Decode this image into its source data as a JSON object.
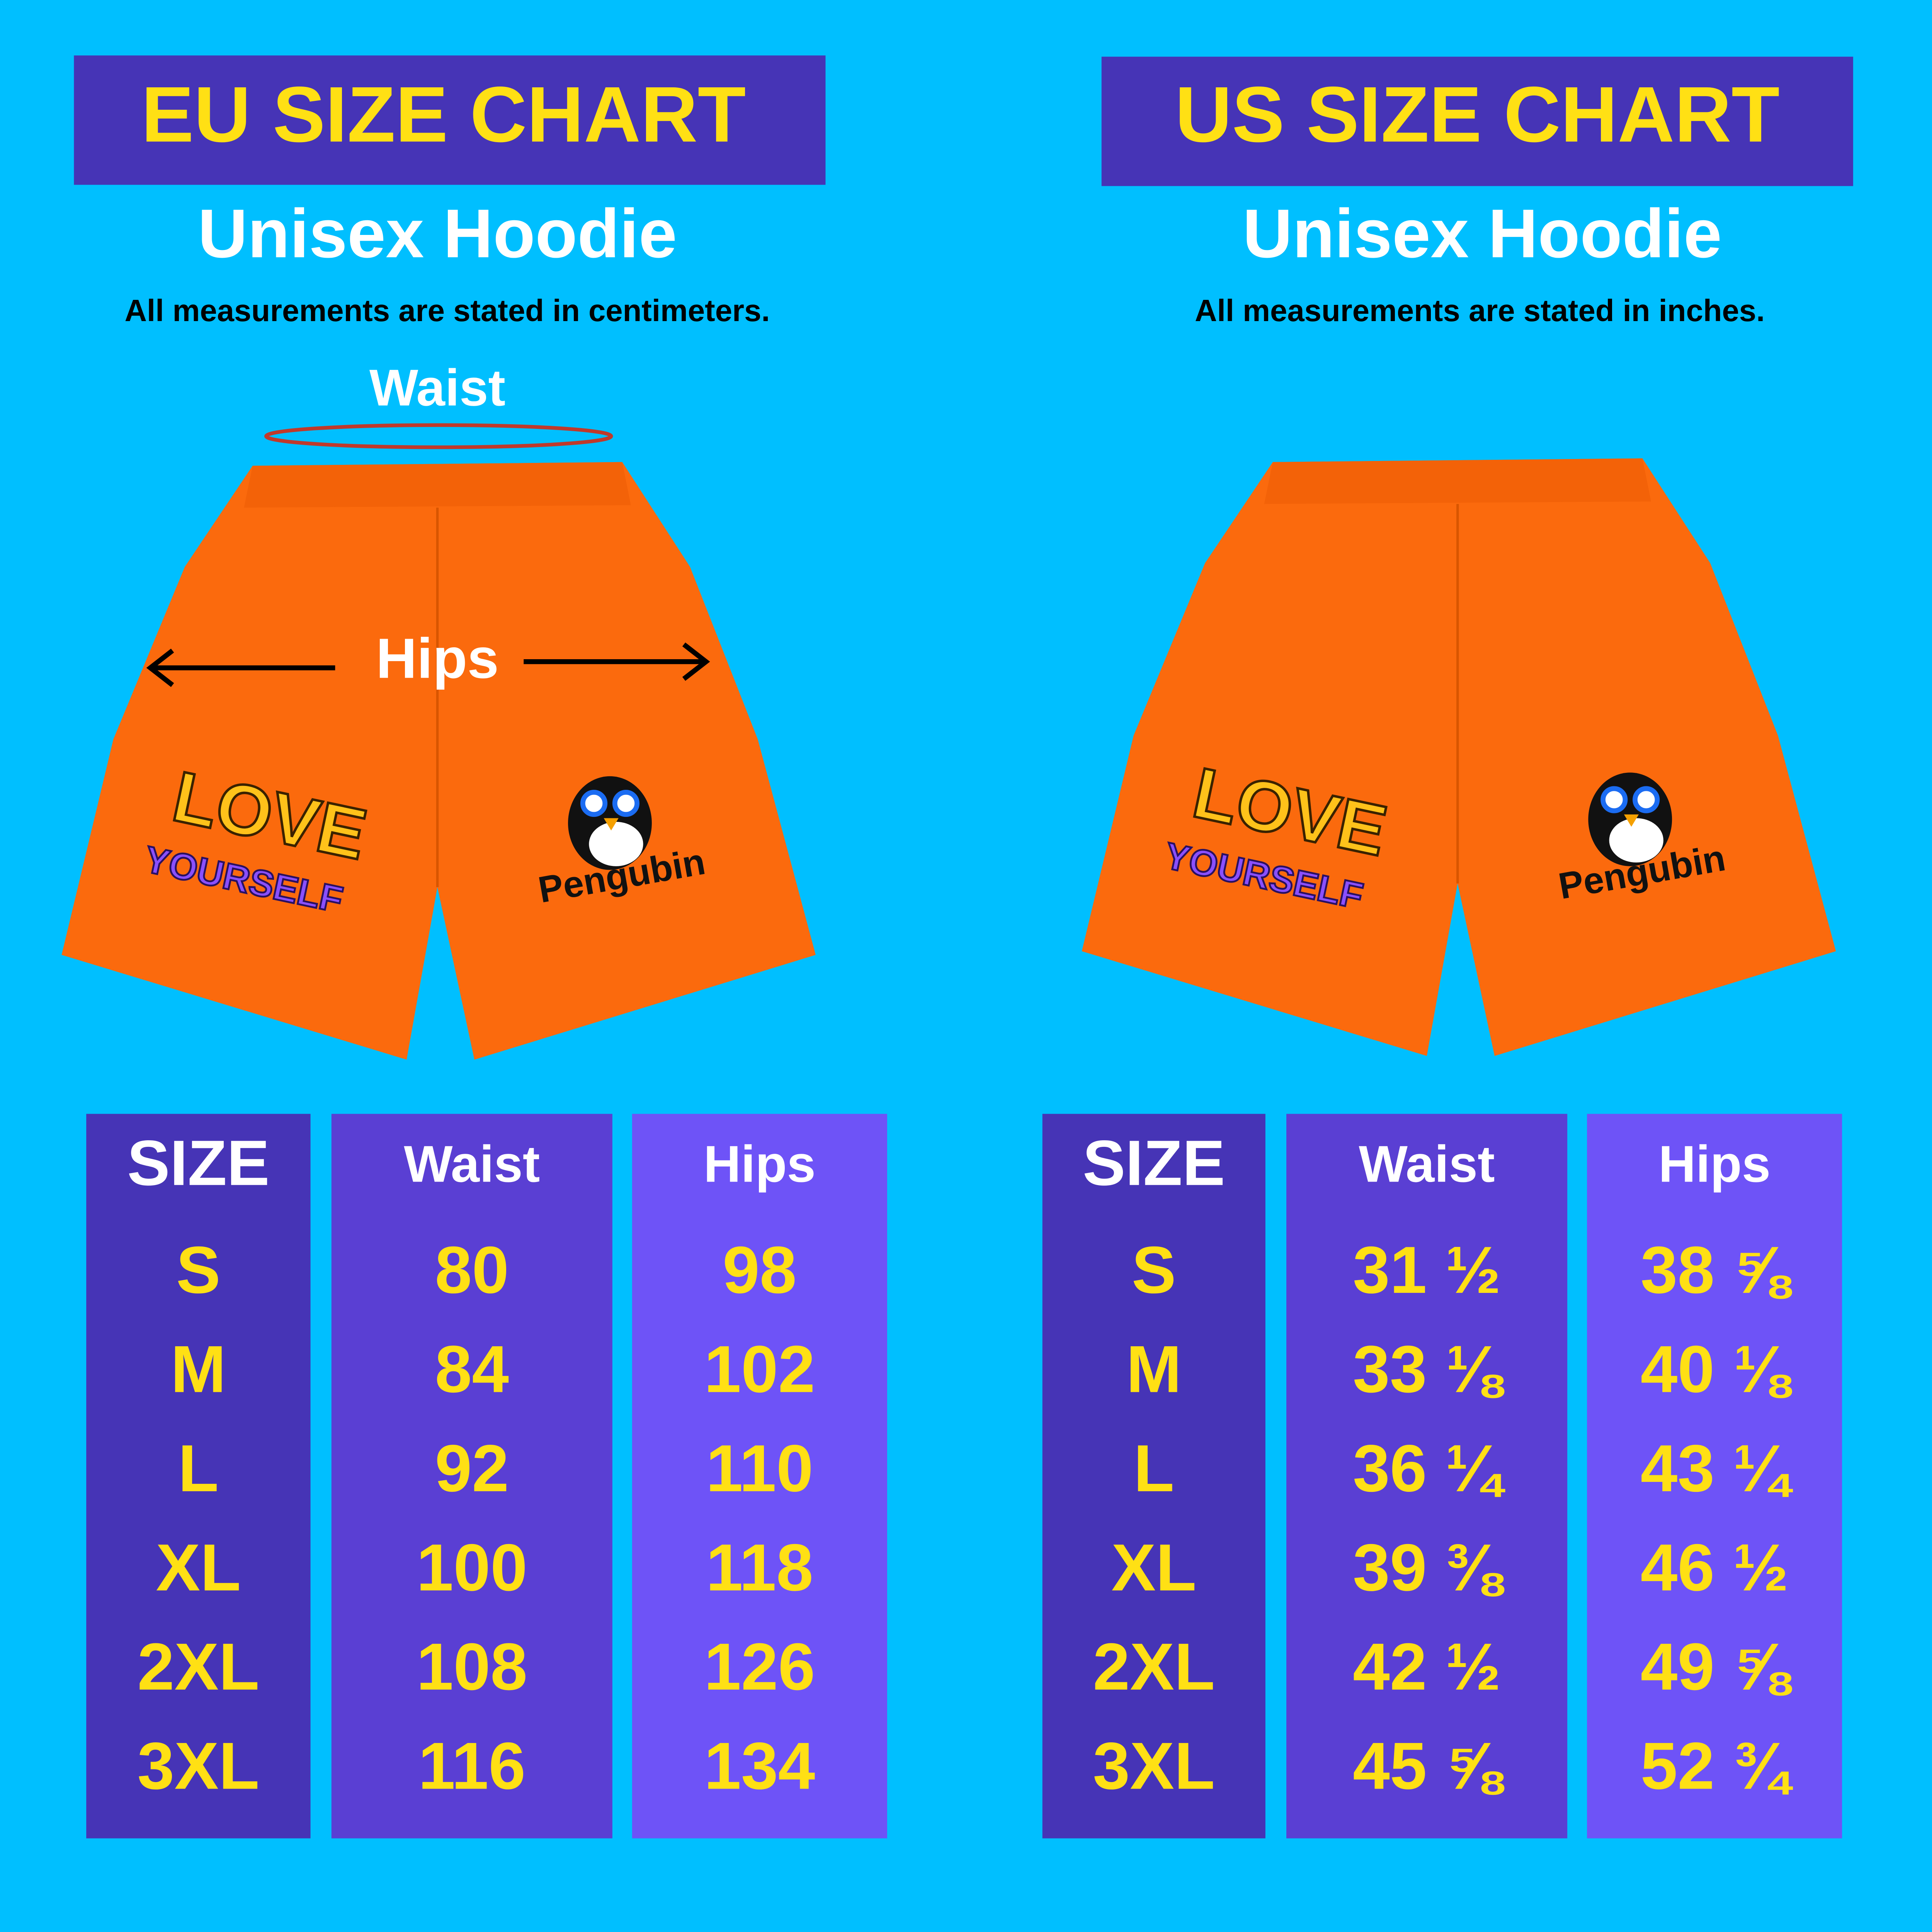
{
  "eu": {
    "title": "EU SIZE CHART",
    "subtitle": "Unisex Hoodie",
    "note": "All measurements are stated in centimeters.",
    "image_labels": {
      "waist": "Waist",
      "hips": "Hips"
    },
    "print": {
      "love": "LOVE",
      "yourself": "YOURSELF",
      "brand": "Pengubin"
    },
    "table": {
      "header": [
        "SIZE",
        "Waist",
        "Hips"
      ],
      "rows": [
        [
          "S",
          80,
          98
        ],
        [
          "M",
          84,
          102
        ],
        [
          "L",
          92,
          110
        ],
        [
          "XL",
          100,
          118
        ],
        [
          "2XL",
          108,
          126
        ],
        [
          "3XL",
          116,
          134
        ]
      ]
    }
  },
  "us": {
    "title": "US SIZE CHART",
    "subtitle": "Unisex Hoodie",
    "note": "All measurements are stated in inches.",
    "print": {
      "love": "LOVE",
      "yourself": "YOURSELF",
      "brand": "Pengubin"
    },
    "table": {
      "header": [
        "SIZE",
        "Waist",
        "Hips"
      ],
      "rows": [
        [
          "S",
          "31 ½",
          "38 ⅝"
        ],
        [
          "M",
          "33 ⅛",
          "40 ⅛"
        ],
        [
          "L",
          "36 ¼",
          "43 ¼"
        ],
        [
          "XL",
          "39 ⅜",
          "46 ½"
        ],
        [
          "2XL",
          "42 ½",
          "49 ⅝"
        ],
        [
          "3XL",
          "45 ⅝",
          "52 ¾"
        ]
      ]
    }
  }
}
